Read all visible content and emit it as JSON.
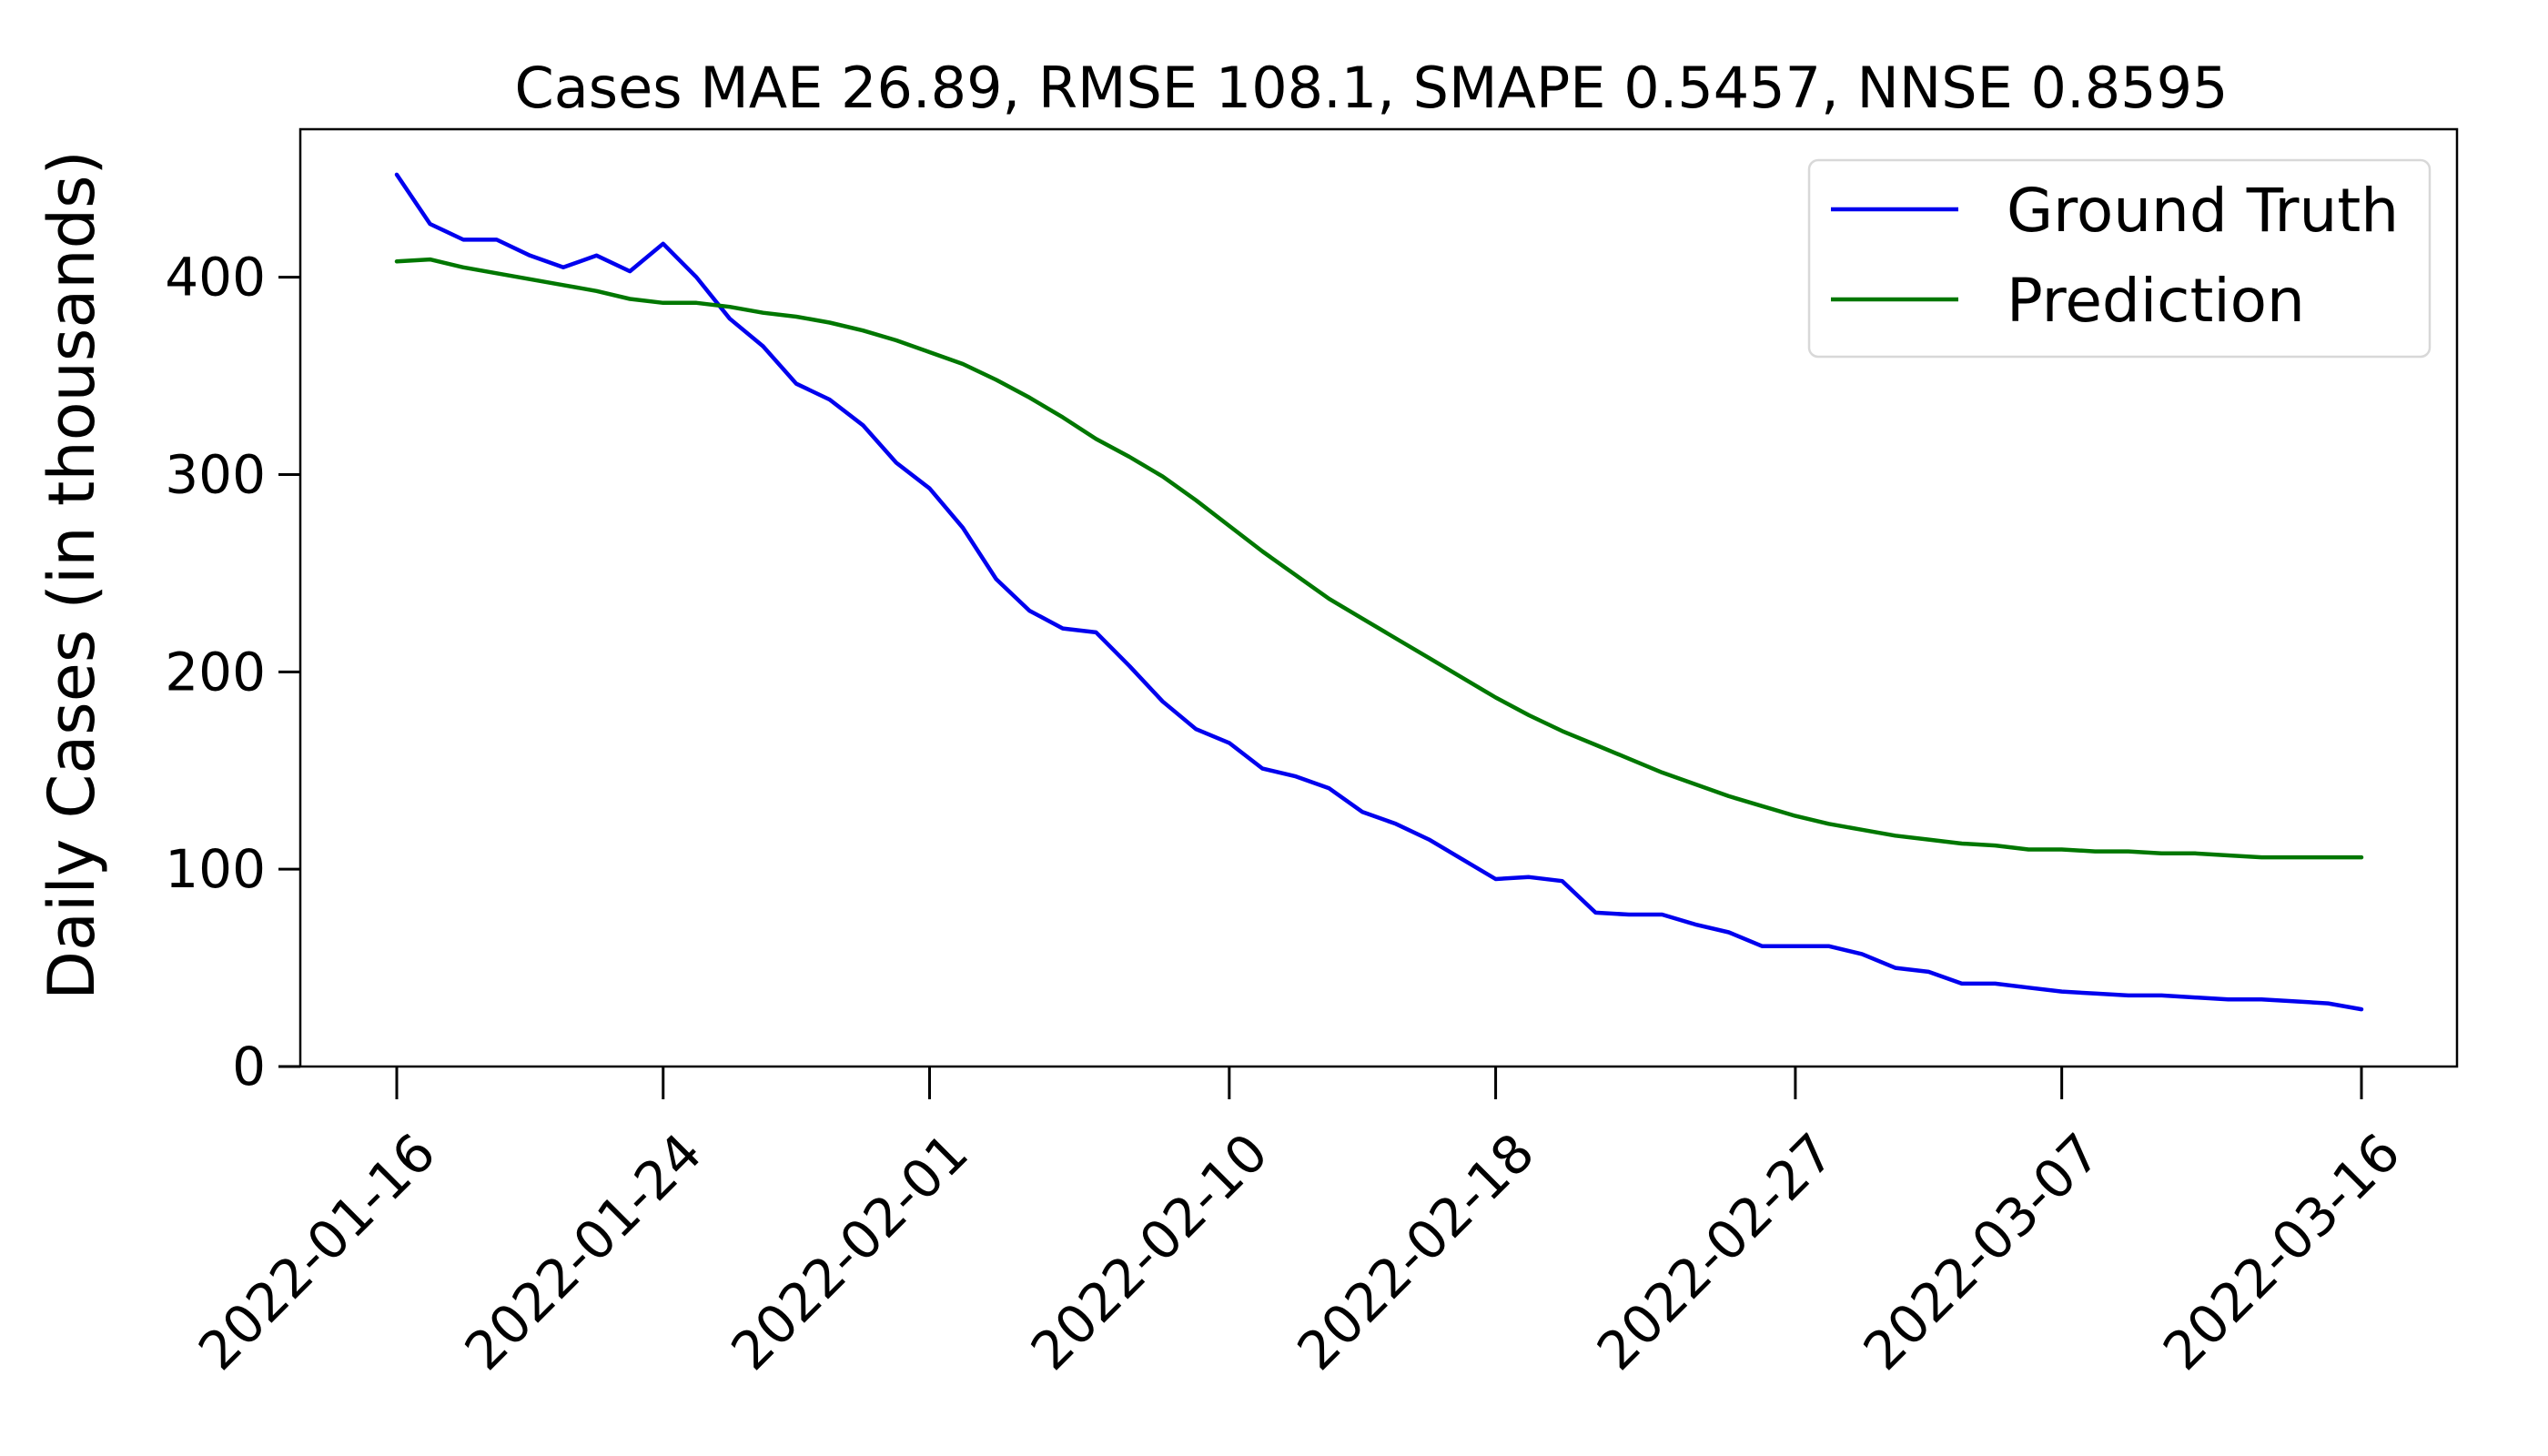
{
  "chart_data": {
    "type": "line",
    "title": "Cases MAE 26.89, RMSE 108.1, SMAPE 0.5457, NNSE 0.8595",
    "xlabel": "",
    "ylabel": "Daily Cases (in thousands)",
    "x_start": "2022-01-16",
    "x_end": "2022-03-16",
    "ylim": [
      0,
      475
    ],
    "y_ticks": [
      0,
      100,
      200,
      300,
      400
    ],
    "x_ticks": [
      "2022-01-16",
      "2022-01-24",
      "2022-02-01",
      "2022-02-10",
      "2022-02-18",
      "2022-02-27",
      "2022-03-07",
      "2022-03-16"
    ],
    "grid": false,
    "legend_position": "top-right",
    "series": [
      {
        "name": "Ground Truth",
        "color": "#0000ee",
        "x": [
          "2022-01-16",
          "2022-01-17",
          "2022-01-18",
          "2022-01-19",
          "2022-01-20",
          "2022-01-21",
          "2022-01-22",
          "2022-01-23",
          "2022-01-24",
          "2022-01-25",
          "2022-01-26",
          "2022-01-27",
          "2022-01-28",
          "2022-01-29",
          "2022-01-30",
          "2022-01-31",
          "2022-02-01",
          "2022-02-02",
          "2022-02-03",
          "2022-02-04",
          "2022-02-05",
          "2022-02-06",
          "2022-02-07",
          "2022-02-08",
          "2022-02-09",
          "2022-02-10",
          "2022-02-11",
          "2022-02-12",
          "2022-02-13",
          "2022-02-14",
          "2022-02-15",
          "2022-02-16",
          "2022-02-17",
          "2022-02-18",
          "2022-02-19",
          "2022-02-20",
          "2022-02-21",
          "2022-02-22",
          "2022-02-23",
          "2022-02-24",
          "2022-02-25",
          "2022-02-26",
          "2022-02-27",
          "2022-02-28",
          "2022-03-01",
          "2022-03-02",
          "2022-03-03",
          "2022-03-04",
          "2022-03-05",
          "2022-03-06",
          "2022-03-07",
          "2022-03-08",
          "2022-03-09",
          "2022-03-10",
          "2022-03-11",
          "2022-03-12",
          "2022-03-13",
          "2022-03-14",
          "2022-03-15",
          "2022-03-16"
        ],
        "values": [
          452,
          427,
          419,
          419,
          411,
          405,
          411,
          403,
          417,
          400,
          379,
          365,
          346,
          338,
          325,
          306,
          293,
          273,
          247,
          231,
          222,
          220,
          203,
          185,
          171,
          164,
          151,
          147,
          141,
          129,
          123,
          115,
          105,
          95,
          96,
          94,
          78,
          77,
          77,
          72,
          68,
          61,
          61,
          61,
          57,
          50,
          48,
          42,
          42,
          40,
          38,
          37,
          36,
          36,
          35,
          34,
          34,
          33,
          32,
          29
        ]
      },
      {
        "name": "Prediction",
        "color": "#007700",
        "x": [
          "2022-01-16",
          "2022-01-17",
          "2022-01-18",
          "2022-01-19",
          "2022-01-20",
          "2022-01-21",
          "2022-01-22",
          "2022-01-23",
          "2022-01-24",
          "2022-01-25",
          "2022-01-26",
          "2022-01-27",
          "2022-01-28",
          "2022-01-29",
          "2022-01-30",
          "2022-01-31",
          "2022-02-01",
          "2022-02-02",
          "2022-02-03",
          "2022-02-04",
          "2022-02-05",
          "2022-02-06",
          "2022-02-07",
          "2022-02-08",
          "2022-02-09",
          "2022-02-10",
          "2022-02-11",
          "2022-02-12",
          "2022-02-13",
          "2022-02-14",
          "2022-02-15",
          "2022-02-16",
          "2022-02-17",
          "2022-02-18",
          "2022-02-19",
          "2022-02-20",
          "2022-02-21",
          "2022-02-22",
          "2022-02-23",
          "2022-02-24",
          "2022-02-25",
          "2022-02-26",
          "2022-02-27",
          "2022-02-28",
          "2022-03-01",
          "2022-03-02",
          "2022-03-03",
          "2022-03-04",
          "2022-03-05",
          "2022-03-06",
          "2022-03-07",
          "2022-03-08",
          "2022-03-09",
          "2022-03-10",
          "2022-03-11",
          "2022-03-12",
          "2022-03-13",
          "2022-03-14",
          "2022-03-15",
          "2022-03-16"
        ],
        "values": [
          408,
          409,
          405,
          402,
          399,
          396,
          393,
          389,
          387,
          387,
          385,
          382,
          380,
          377,
          373,
          368,
          362,
          356,
          348,
          339,
          329,
          318,
          309,
          299,
          287,
          274,
          261,
          249,
          237,
          227,
          217,
          207,
          197,
          187,
          178,
          170,
          163,
          156,
          149,
          143,
          137,
          132,
          127,
          123,
          120,
          117,
          115,
          113,
          112,
          110,
          110,
          109,
          109,
          108,
          108,
          107,
          106,
          106,
          106,
          106
        ]
      }
    ]
  }
}
